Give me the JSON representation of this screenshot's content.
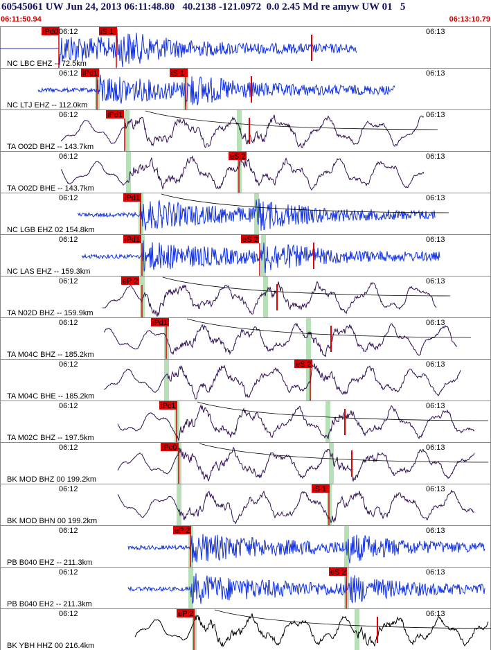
{
  "header": {
    "title": "60545061 UW Jun 24, 2013 06:11:48.80   40.2138 -121.0972  0.0 2.45 Md re amyw UW 01   5",
    "start_time": "06:11:50.94",
    "end_time": "06:13:10.79"
  },
  "minute_labels": [
    "06:12",
    "06:13"
  ],
  "traces": [
    {
      "station": "NC LBC EHZ -- 72.5km",
      "picks": [
        "iPd0",
        "iS 1"
      ]
    },
    {
      "station": "NC LTJ EHZ -- 112.0km",
      "picks": [
        "iPd1",
        "iS 1"
      ]
    },
    {
      "station": "TA O02D BHZ -- 143.7km",
      "picks": [
        "iPd1"
      ]
    },
    {
      "station": "TA O02D BHE -- 143.7km",
      "picks": [
        "eS 2"
      ]
    },
    {
      "station": "NC LGB EHZ 02 154.8km",
      "picks": [
        "iPd1"
      ]
    },
    {
      "station": "NC LAS EHZ -- 159.3km",
      "picks": [
        "iPd1",
        "eS 2"
      ]
    },
    {
      "station": "TA N02D BHZ -- 159.9km",
      "picks": [
        "eP 2"
      ]
    },
    {
      "station": "TA M04C BHZ -- 185.2km",
      "picks": [
        "iPd1"
      ]
    },
    {
      "station": "TA M04C BHE -- 185.2km",
      "picks": [
        "eS 2"
      ]
    },
    {
      "station": "TA M02C BHZ -- 197.5km",
      "picks": [
        "iPc1"
      ]
    },
    {
      "station": "BK MOD BHZ 00 199.2km",
      "picks": [
        "iPc0"
      ]
    },
    {
      "station": "BK MOD BHN 00 199.2km",
      "picks": [
        "iS 1"
      ]
    },
    {
      "station": "PB B040 EHZ -- 211.3km",
      "picks": [
        "eP 2"
      ]
    },
    {
      "station": "PB B040 EH2 -- 211.3km",
      "picks": [
        "eS 2"
      ]
    },
    {
      "station": "BK YBH HHZ 00 216.4km",
      "picks": [
        "eP 2"
      ]
    }
  ]
}
